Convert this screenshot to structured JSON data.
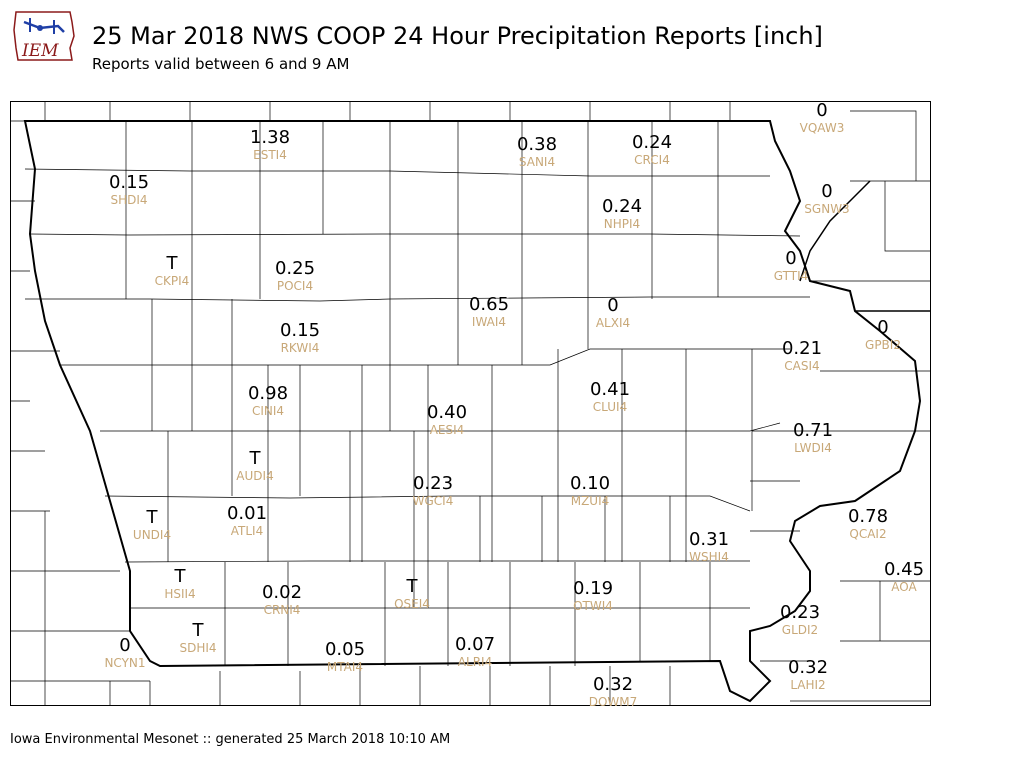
{
  "header": {
    "logo_text": "IEM",
    "title": "25 Mar 2018 NWS COOP 24 Hour Precipitation Reports [inch]",
    "subtitle": "Reports valid between 6 and 9 AM"
  },
  "footer": {
    "text": "Iowa Environmental Mesonet :: generated 25 March 2018 10:10 AM"
  },
  "colors": {
    "value_text": "#000000",
    "station_text": "#c8a878",
    "county_line": "#000000",
    "state_border": "#000000"
  },
  "stations": [
    {
      "id": "ESTI4",
      "value": "1.38"
    },
    {
      "id": "SANI4",
      "value": "0.38"
    },
    {
      "id": "CRCI4",
      "value": "0.24"
    },
    {
      "id": "VQAW3",
      "value": "0"
    },
    {
      "id": "SHDI4",
      "value": "0.15"
    },
    {
      "id": "SGNW3",
      "value": "0"
    },
    {
      "id": "NHPI4",
      "value": "0.24"
    },
    {
      "id": "CKPI4",
      "value": "T"
    },
    {
      "id": "POCI4",
      "value": "0.25"
    },
    {
      "id": "GTTI4",
      "value": "0"
    },
    {
      "id": "IWAI4",
      "value": "0.65"
    },
    {
      "id": "ALXI4",
      "value": "0"
    },
    {
      "id": "GPBI2",
      "value": "0"
    },
    {
      "id": "RKWI4",
      "value": "0.15"
    },
    {
      "id": "CASI4",
      "value": "0.21"
    },
    {
      "id": "CINI4",
      "value": "0.98"
    },
    {
      "id": "CLUI4",
      "value": "0.41"
    },
    {
      "id": "AESI4",
      "value": "0.40"
    },
    {
      "id": "LWDI4",
      "value": "0.71"
    },
    {
      "id": "AUDI4",
      "value": "T"
    },
    {
      "id": "WGCI4",
      "value": "0.23"
    },
    {
      "id": "MZUI4",
      "value": "0.10"
    },
    {
      "id": "UNDI4",
      "value": "T"
    },
    {
      "id": "ATLI4",
      "value": "0.01"
    },
    {
      "id": "QCAI2",
      "value": "0.78"
    },
    {
      "id": "WSHI4",
      "value": "0.31"
    },
    {
      "id": "AOA",
      "value": "0.45"
    },
    {
      "id": "HSII4",
      "value": "T"
    },
    {
      "id": "CRNI4",
      "value": "0.02"
    },
    {
      "id": "OSEI4",
      "value": "T"
    },
    {
      "id": "OTWI4",
      "value": "0.19"
    },
    {
      "id": "GLDI2",
      "value": "0.23"
    },
    {
      "id": "SDHI4",
      "value": "T"
    },
    {
      "id": "NCYN1",
      "value": "0"
    },
    {
      "id": "MTAI4",
      "value": "0.05"
    },
    {
      "id": "ALRI4",
      "value": "0.07"
    },
    {
      "id": "LAHI2",
      "value": "0.32"
    },
    {
      "id": "DOWM7",
      "value": "0.32"
    }
  ]
}
